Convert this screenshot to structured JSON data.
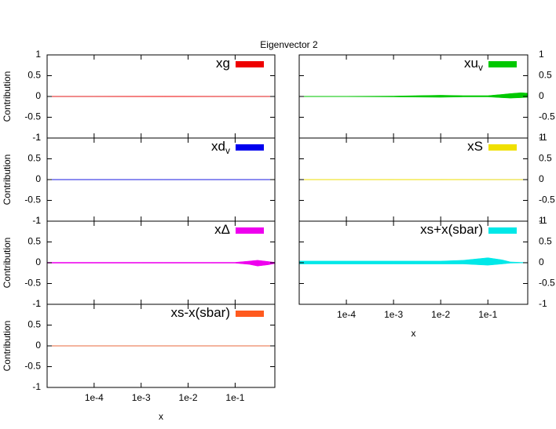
{
  "title": "Eigenvector 2",
  "chart_data": [
    {
      "type": "band",
      "name": "xg",
      "color": "#ee0000",
      "ylabel": "Contribution",
      "ytick_side": "left",
      "x": [
        1e-05,
        0.0001,
        0.001,
        0.003,
        0.01,
        0.03,
        0.1,
        0.2,
        0.3,
        0.5,
        0.7
      ],
      "upper": [
        0.002,
        0.002,
        0.004,
        0.005,
        0.004,
        0.003,
        0.002,
        0.002,
        0.002,
        0.002,
        0.001
      ],
      "lower": [
        -0.002,
        -0.002,
        -0.004,
        -0.005,
        -0.004,
        -0.003,
        -0.002,
        -0.002,
        -0.002,
        -0.002,
        -0.001
      ],
      "log_x": true,
      "xlim": [
        1e-05,
        0.7
      ],
      "ylim": [
        -1,
        1
      ],
      "xticks": [
        {
          "value": 0.0001,
          "label": "1e-4"
        },
        {
          "value": 0.001,
          "label": "1e-3"
        },
        {
          "value": 0.01,
          "label": "1e-2"
        },
        {
          "value": 0.1,
          "label": "1e-1"
        }
      ],
      "yticks": [
        -1,
        -0.5,
        0,
        0.5,
        1
      ]
    },
    {
      "type": "band",
      "name": "xu",
      "name_sub": "v",
      "color": "#00c800",
      "ytick_side": "right",
      "x": [
        1e-05,
        0.0001,
        0.001,
        0.003,
        0.01,
        0.03,
        0.1,
        0.2,
        0.3,
        0.5,
        0.7
      ],
      "upper": [
        0.005,
        0.005,
        0.01,
        0.02,
        0.03,
        0.02,
        0.02,
        0.05,
        0.07,
        0.09,
        0.08
      ],
      "lower": [
        -0.005,
        -0.005,
        -0.01,
        -0.015,
        -0.02,
        -0.01,
        -0.01,
        -0.03,
        -0.04,
        -0.03,
        -0.02
      ],
      "log_x": true,
      "xlim": [
        1e-05,
        0.7
      ],
      "ylim": [
        -1,
        1
      ],
      "xticks": [
        {
          "value": 0.0001,
          "label": "1e-4"
        },
        {
          "value": 0.001,
          "label": "1e-3"
        },
        {
          "value": 0.01,
          "label": "1e-2"
        },
        {
          "value": 0.1,
          "label": "1e-1"
        }
      ],
      "yticks": [
        -1,
        -0.5,
        0,
        0.5,
        1
      ]
    },
    {
      "type": "band",
      "name": "xd",
      "name_sub": "v",
      "color": "#0000ee",
      "ylabel": "Contribution",
      "ytick_side": "left",
      "x": [
        1e-05,
        0.0001,
        0.001,
        0.003,
        0.01,
        0.03,
        0.1,
        0.2,
        0.3,
        0.5,
        0.7
      ],
      "upper": [
        0.002,
        0.002,
        0.002,
        0.002,
        0.002,
        0.002,
        0.002,
        0.002,
        0.002,
        0.002,
        0.001
      ],
      "lower": [
        -0.002,
        -0.002,
        -0.002,
        -0.002,
        -0.002,
        -0.002,
        -0.002,
        -0.002,
        -0.002,
        -0.002,
        -0.001
      ],
      "log_x": true,
      "xlim": [
        1e-05,
        0.7
      ],
      "ylim": [
        -1,
        1
      ],
      "xticks": [
        {
          "value": 0.0001,
          "label": "1e-4"
        },
        {
          "value": 0.001,
          "label": "1e-3"
        },
        {
          "value": 0.01,
          "label": "1e-2"
        },
        {
          "value": 0.1,
          "label": "1e-1"
        }
      ],
      "yticks": [
        -1,
        -0.5,
        0,
        0.5,
        1
      ]
    },
    {
      "type": "band",
      "name": "xS",
      "color": "#f0e000",
      "ytick_side": "right",
      "x": [
        1e-05,
        0.0001,
        0.001,
        0.003,
        0.01,
        0.03,
        0.1,
        0.2,
        0.3,
        0.5,
        0.7
      ],
      "upper": [
        0.004,
        0.004,
        0.005,
        0.005,
        0.005,
        0.004,
        0.003,
        0.003,
        0.003,
        0.003,
        0.002
      ],
      "lower": [
        -0.004,
        -0.004,
        -0.005,
        -0.005,
        -0.005,
        -0.004,
        -0.003,
        -0.003,
        -0.003,
        -0.003,
        -0.002
      ],
      "log_x": true,
      "xlim": [
        1e-05,
        0.7
      ],
      "ylim": [
        -1,
        1
      ],
      "xticks": [
        {
          "value": 0.0001,
          "label": "1e-4"
        },
        {
          "value": 0.001,
          "label": "1e-3"
        },
        {
          "value": 0.01,
          "label": "1e-2"
        },
        {
          "value": 0.1,
          "label": "1e-1"
        }
      ],
      "yticks": [
        -1,
        -0.5,
        0,
        0.5,
        1
      ]
    },
    {
      "type": "band",
      "name": "xΔ",
      "color": "#ee00ee",
      "ylabel": "Contribution",
      "ytick_side": "left",
      "x": [
        1e-05,
        0.0001,
        0.001,
        0.003,
        0.01,
        0.03,
        0.1,
        0.2,
        0.3,
        0.5,
        0.7
      ],
      "upper": [
        0.01,
        0.01,
        0.01,
        0.01,
        0.01,
        0.01,
        0.01,
        0.04,
        0.06,
        0.03,
        0.01
      ],
      "lower": [
        -0.01,
        -0.01,
        -0.01,
        -0.01,
        -0.01,
        -0.01,
        -0.01,
        -0.04,
        -0.08,
        -0.05,
        -0.02
      ],
      "log_x": true,
      "xlim": [
        1e-05,
        0.7
      ],
      "ylim": [
        -1,
        1
      ],
      "xticks": [
        {
          "value": 0.0001,
          "label": "1e-4"
        },
        {
          "value": 0.001,
          "label": "1e-3"
        },
        {
          "value": 0.01,
          "label": "1e-2"
        },
        {
          "value": 0.1,
          "label": "1e-1"
        }
      ],
      "yticks": [
        -1,
        -0.5,
        0,
        0.5,
        1
      ]
    },
    {
      "type": "band",
      "name": "xs+x(sbar)",
      "color": "#00e8e8",
      "ytick_side": "right",
      "xlabel": "x",
      "show_xtick_labels": true,
      "x": [
        1e-05,
        0.0001,
        0.001,
        0.003,
        0.01,
        0.03,
        0.1,
        0.2,
        0.3,
        0.5,
        0.7
      ],
      "upper": [
        0.04,
        0.04,
        0.04,
        0.04,
        0.04,
        0.06,
        0.12,
        0.07,
        0.02,
        0.01,
        0.005
      ],
      "lower": [
        -0.03,
        -0.03,
        -0.03,
        -0.03,
        -0.03,
        -0.03,
        -0.06,
        -0.03,
        -0.01,
        -0.005,
        -0.002
      ],
      "log_x": true,
      "xlim": [
        1e-05,
        0.7
      ],
      "ylim": [
        -1,
        1
      ],
      "xticks": [
        {
          "value": 0.0001,
          "label": "1e-4"
        },
        {
          "value": 0.001,
          "label": "1e-3"
        },
        {
          "value": 0.01,
          "label": "1e-2"
        },
        {
          "value": 0.1,
          "label": "1e-1"
        }
      ],
      "yticks": [
        -1,
        -0.5,
        0,
        0.5,
        1
      ]
    },
    {
      "type": "band",
      "name": "xs-x(sbar)",
      "color": "#ff5a1e",
      "ylabel": "Contribution",
      "ytick_side": "left",
      "xlabel": "x",
      "show_xtick_labels": true,
      "x": [
        1e-05,
        0.0001,
        0.001,
        0.003,
        0.01,
        0.03,
        0.1,
        0.2,
        0.3,
        0.5,
        0.7
      ],
      "upper": [
        0.001,
        0.001,
        0.001,
        0.001,
        0.001,
        0.001,
        0.001,
        0.001,
        0.001,
        0.001,
        0.001
      ],
      "lower": [
        -0.001,
        -0.001,
        -0.001,
        -0.001,
        -0.001,
        -0.001,
        -0.001,
        -0.001,
        -0.001,
        -0.001,
        -0.001
      ],
      "log_x": true,
      "xlim": [
        1e-05,
        0.7
      ],
      "ylim": [
        -1,
        1
      ],
      "xticks": [
        {
          "value": 0.0001,
          "label": "1e-4"
        },
        {
          "value": 0.001,
          "label": "1e-3"
        },
        {
          "value": 0.01,
          "label": "1e-2"
        },
        {
          "value": 0.1,
          "label": "1e-1"
        }
      ],
      "yticks": [
        -1,
        -0.5,
        0,
        0.5,
        1
      ]
    }
  ]
}
